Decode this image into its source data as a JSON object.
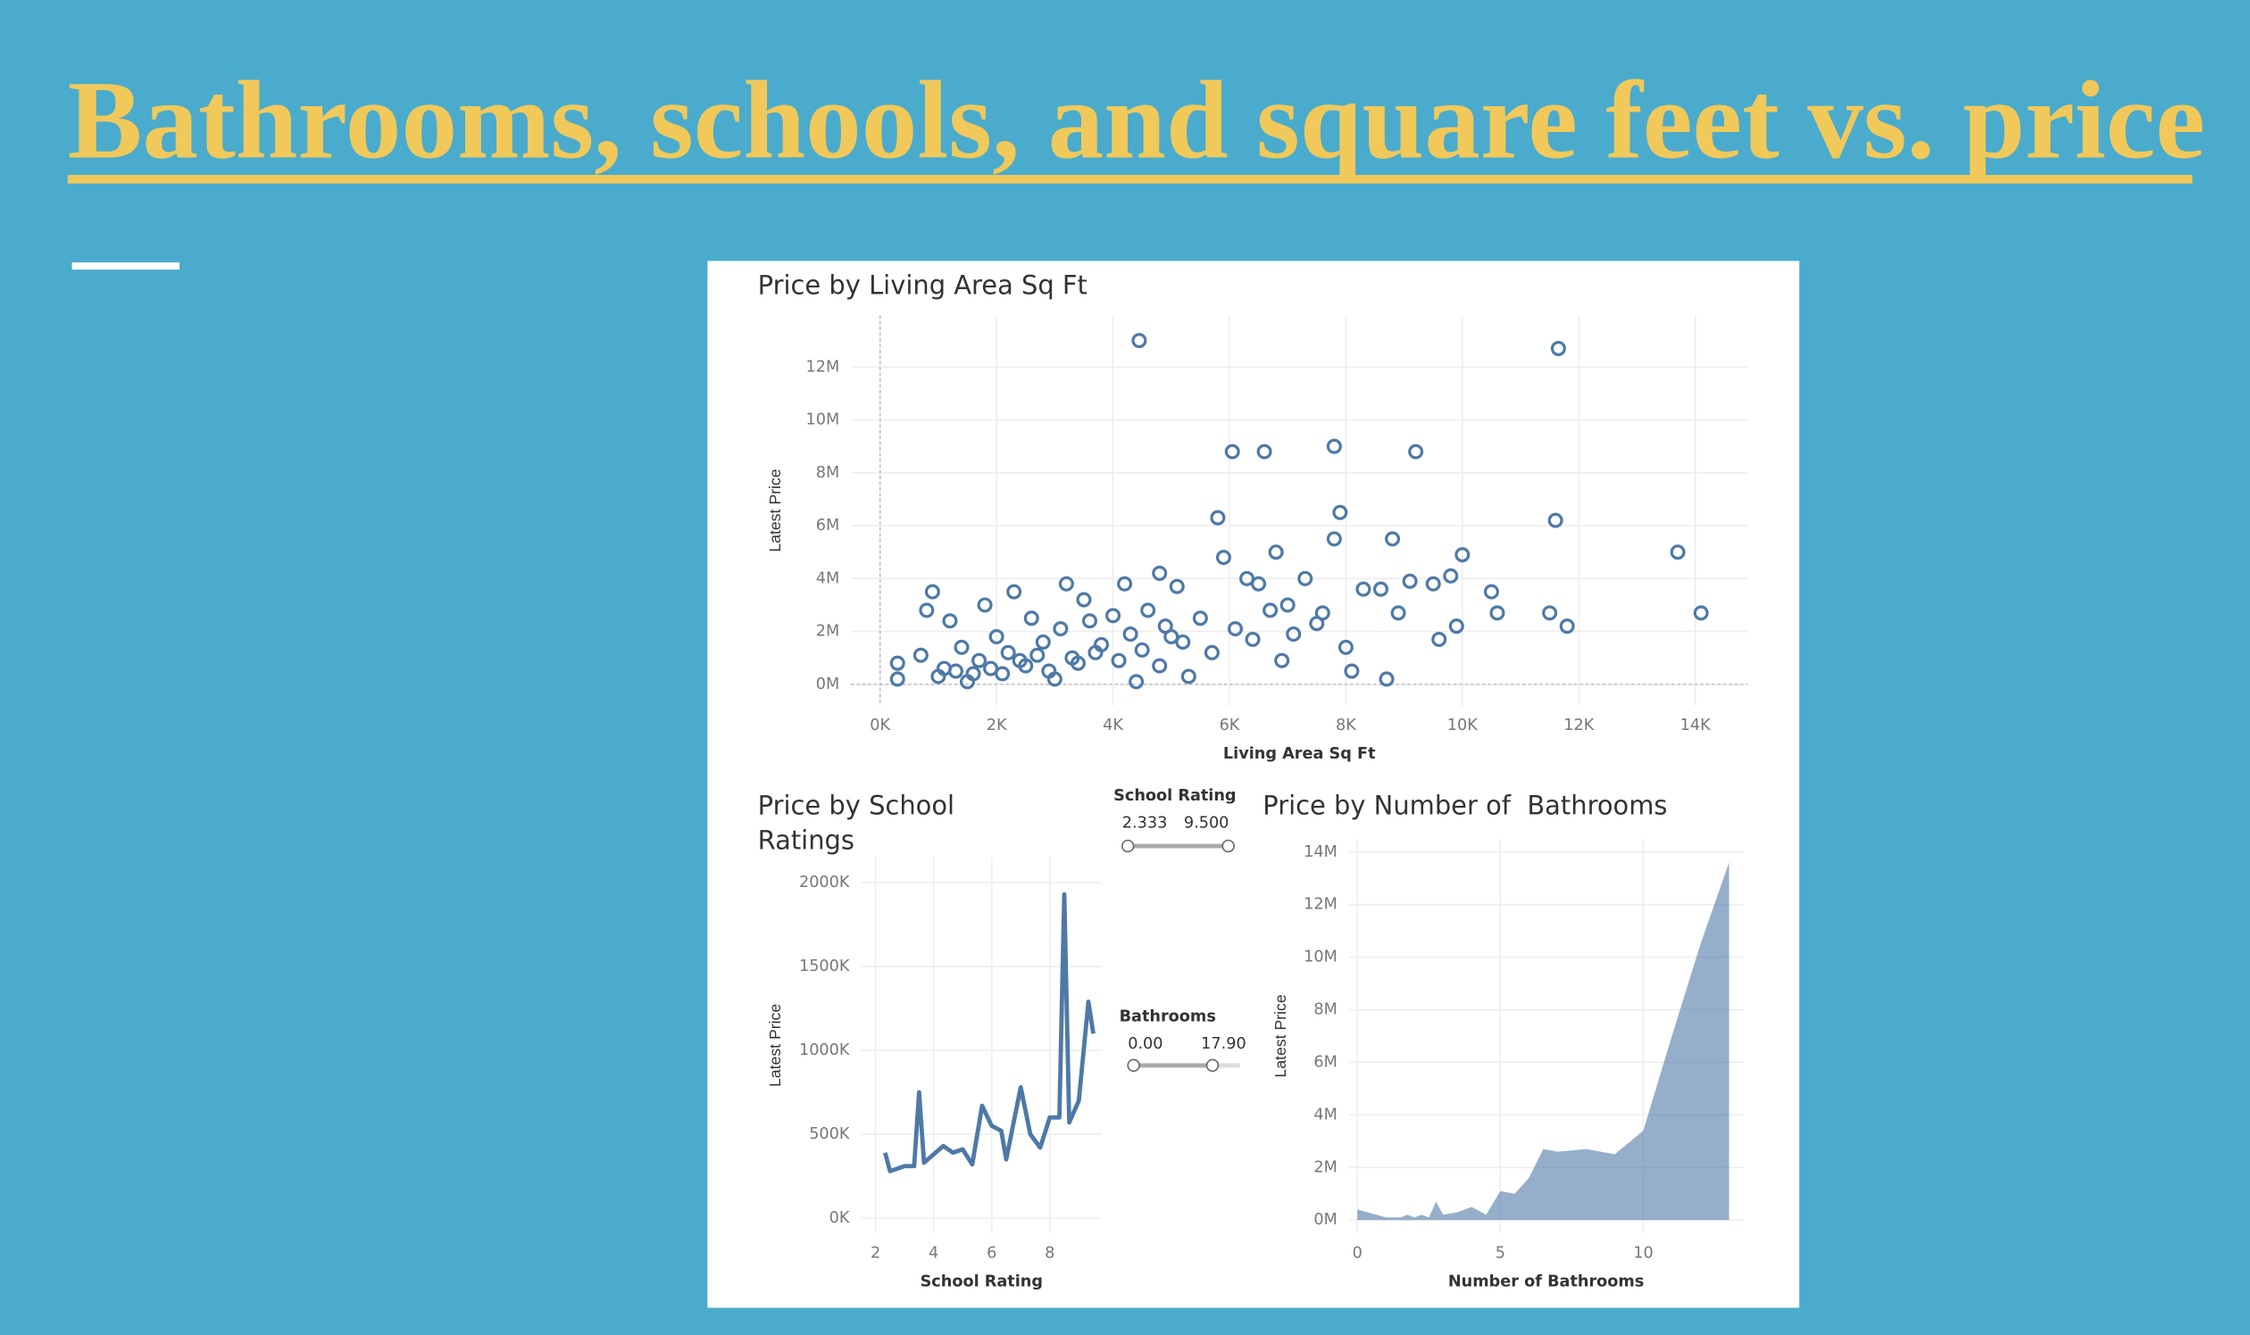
{
  "title": "Bathrooms, schools, and square feet vs. price",
  "filters": [
    {
      "label": "School Rating",
      "range_labels": [
        "2.333",
        "9.500"
      ]
    },
    {
      "label": "Bathrooms",
      "range_labels": [
        "0.00",
        "17.90"
      ]
    }
  ],
  "chart_data": [
    {
      "type": "scatter",
      "title": "Price by Living Area Sq Ft",
      "x_label": "Living Area Sq Ft",
      "y_label": "Latest Price",
      "color": "#4e79a7",
      "grid": true,
      "xlim": [
        -500,
        14900
      ],
      "ylim": [
        -800000,
        13950000
      ],
      "xticks": [
        {
          "value": 0,
          "label": "0K"
        },
        {
          "value": 2000,
          "label": "2K"
        },
        {
          "value": 4000,
          "label": "4K"
        },
        {
          "value": 6000,
          "label": "6K"
        },
        {
          "value": 8000,
          "label": "8K"
        },
        {
          "value": 10000,
          "label": "10K"
        },
        {
          "value": 12000,
          "label": "12K"
        },
        {
          "value": 14000,
          "label": "14K"
        }
      ],
      "yticks": [
        {
          "value": 0,
          "label": "0M"
        },
        {
          "value": 2000000,
          "label": "2M"
        },
        {
          "value": 4000000,
          "label": "4M"
        },
        {
          "value": 6000000,
          "label": "6M"
        },
        {
          "value": 8000000,
          "label": "8M"
        },
        {
          "value": 10000000,
          "label": "10M"
        },
        {
          "value": 12000000,
          "label": "12M"
        }
      ],
      "x": [
        4450,
        11650,
        6050,
        6600,
        7800,
        9200,
        5800,
        7900,
        11600,
        13700,
        14100,
        7800,
        8800,
        10000,
        6800,
        9800,
        10500,
        10600,
        11500,
        11800,
        9500,
        9100,
        8300,
        8600,
        9900,
        9600,
        8700,
        8000,
        7500,
        7000,
        6500,
        5900,
        4800,
        4200,
        3200,
        2300,
        900,
        800,
        1200,
        1800,
        2600,
        3500,
        5100,
        6300,
        7300,
        8900,
        8100,
        6900,
        5300,
        4400,
        3000,
        1500,
        300,
        300,
        700,
        1100,
        1400,
        1700,
        2000,
        2200,
        2500,
        2800,
        3100,
        3300,
        3600,
        3800,
        4000,
        4300,
        4600,
        4900,
        5200,
        5500,
        5700,
        6100,
        6400,
        6700,
        7100,
        7600,
        1000,
        1300,
        1600,
        1900,
        2100,
        2400,
        2700,
        2900,
        3400,
        3700,
        4100,
        4500,
        4800,
        5000
      ],
      "values": [
        13000000,
        12700000,
        8800000,
        8800000,
        9000000,
        8800000,
        6300000,
        6500000,
        6200000,
        5000000,
        2700000,
        5500000,
        5500000,
        4900000,
        5000000,
        4100000,
        3500000,
        2700000,
        2700000,
        2200000,
        3800000,
        3900000,
        3600000,
        3600000,
        2200000,
        1700000,
        200000,
        1400000,
        2300000,
        3000000,
        3800000,
        4800000,
        4200000,
        3800000,
        3800000,
        3500000,
        3500000,
        2800000,
        2400000,
        3000000,
        2500000,
        3200000,
        3700000,
        4000000,
        4000000,
        2700000,
        500000,
        900000,
        300000,
        100000,
        200000,
        100000,
        200000,
        800000,
        1100000,
        600000,
        1400000,
        900000,
        1800000,
        1200000,
        700000,
        1600000,
        2100000,
        1000000,
        2400000,
        1500000,
        2600000,
        1900000,
        2800000,
        2200000,
        1600000,
        2500000,
        1200000,
        2100000,
        1700000,
        2800000,
        1900000,
        2700000,
        300000,
        500000,
        400000,
        600000,
        400000,
        900000,
        1100000,
        500000,
        800000,
        1200000,
        900000,
        1300000,
        700000,
        1800000
      ]
    },
    {
      "type": "line",
      "title": "Price by School Ratings",
      "x_label": "School Rating",
      "y_label": "Latest Price",
      "color": "#4e79a7",
      "grid": true,
      "xlim": [
        1.5,
        9.8
      ],
      "ylim": [
        -90000,
        2150000
      ],
      "xticks": [
        2,
        4,
        6,
        8
      ],
      "yticks": [
        {
          "value": 0,
          "label": "0K"
        },
        {
          "value": 500000,
          "label": "500K"
        },
        {
          "value": 1000000,
          "label": "1000K"
        },
        {
          "value": 1500000,
          "label": "1500K"
        },
        {
          "value": 2000000,
          "label": "2000K"
        }
      ],
      "x": [
        2.33,
        2.5,
        3,
        3.33,
        3.5,
        3.67,
        4,
        4.33,
        4.67,
        5,
        5.33,
        5.67,
        6,
        6.33,
        6.5,
        7,
        7.33,
        7.67,
        8,
        8.33,
        8.5,
        8.67,
        9,
        9.33,
        9.5
      ],
      "values": [
        390000,
        280000,
        310000,
        310000,
        750000,
        330000,
        380000,
        430000,
        390000,
        410000,
        320000,
        670000,
        550000,
        520000,
        350000,
        780000,
        500000,
        420000,
        600000,
        600000,
        1930000,
        570000,
        700000,
        1290000,
        1100000
      ]
    },
    {
      "type": "area",
      "title": "Price by Number of  Bathrooms",
      "x_label": "Number of Bathrooms",
      "y_label": "Latest Price",
      "color": "#4e79a7",
      "grid": true,
      "xlim": [
        -0.3,
        13.5
      ],
      "ylim": [
        -500000,
        14500000
      ],
      "xticks": [
        0,
        5,
        10
      ],
      "yticks": [
        {
          "value": 0,
          "label": "0M"
        },
        {
          "value": 2000000,
          "label": "2M"
        },
        {
          "value": 4000000,
          "label": "4M"
        },
        {
          "value": 6000000,
          "label": "6M"
        },
        {
          "value": 8000000,
          "label": "8M"
        },
        {
          "value": 10000000,
          "label": "10M"
        },
        {
          "value": 12000000,
          "label": "12M"
        },
        {
          "value": 14000000,
          "label": "14M"
        }
      ],
      "x": [
        0,
        1,
        1.5,
        1.75,
        2,
        2.25,
        2.5,
        2.75,
        3,
        3.5,
        4,
        4.5,
        5,
        5.5,
        6,
        6.5,
        7,
        8,
        9,
        10,
        11,
        12,
        13
      ],
      "values": [
        400000,
        100000,
        100000,
        200000,
        100000,
        200000,
        100000,
        700000,
        200000,
        300000,
        500000,
        200000,
        1100000,
        1000000,
        1600000,
        2700000,
        2600000,
        2700000,
        2500000,
        3400000,
        7000000,
        10500000,
        13600000
      ]
    }
  ]
}
